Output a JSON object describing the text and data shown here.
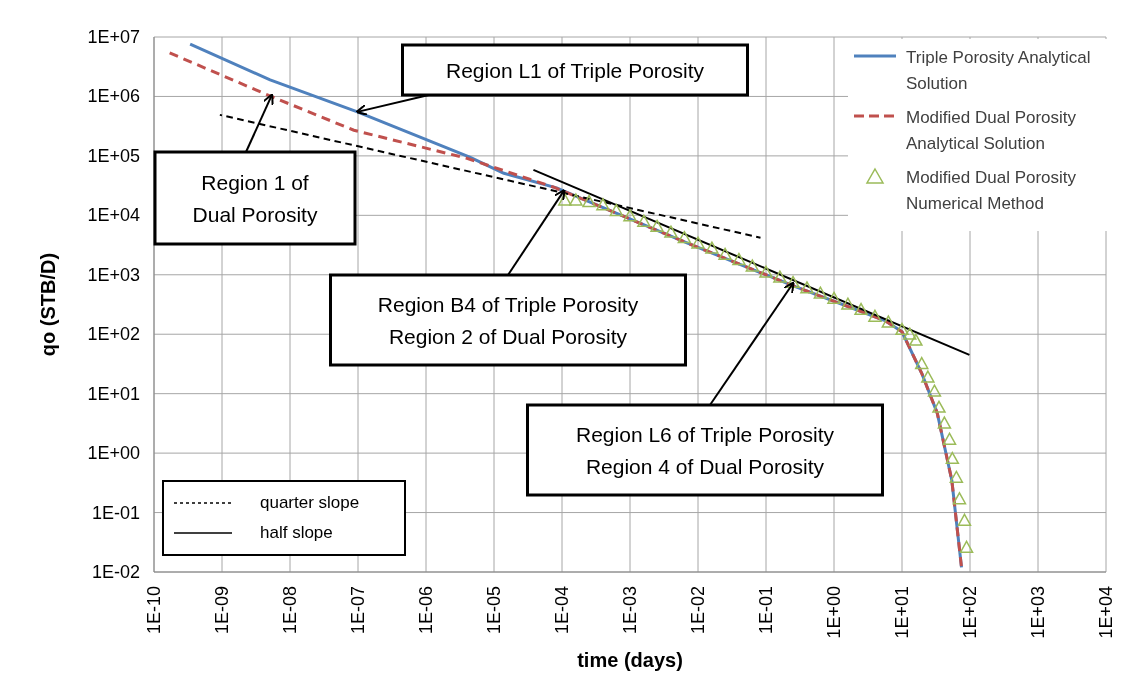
{
  "chart_data": {
    "type": "line",
    "xlabel": "time (days)",
    "ylabel": "qo (STB/D)",
    "log": "xy",
    "grid": true,
    "legend": "top right",
    "xlim": [
      1e-10,
      10000
    ],
    "ylim": [
      0.01,
      10000000
    ],
    "xticks": [
      {
        "value": 1e-10,
        "label": "1E-10"
      },
      {
        "value": 1e-09,
        "label": "1E-09"
      },
      {
        "value": 1e-08,
        "label": "1E-08"
      },
      {
        "value": 1e-07,
        "label": "1E-07"
      },
      {
        "value": 1e-06,
        "label": "1E-06"
      },
      {
        "value": 1e-05,
        "label": "1E-05"
      },
      {
        "value": 0.0001,
        "label": "1E-04"
      },
      {
        "value": 0.001,
        "label": "1E-03"
      },
      {
        "value": 0.01,
        "label": "1E-02"
      },
      {
        "value": 0.1,
        "label": "1E-01"
      },
      {
        "value": 1,
        "label": "1E+00"
      },
      {
        "value": 10,
        "label": "1E+01"
      },
      {
        "value": 100,
        "label": "1E+02"
      },
      {
        "value": 1000,
        "label": "1E+03"
      },
      {
        "value": 10000,
        "label": "1E+04"
      }
    ],
    "yticks": [
      {
        "value": 0.01,
        "label": "1E-02"
      },
      {
        "value": 0.1,
        "label": "1E-01"
      },
      {
        "value": 1,
        "label": "1E+00"
      },
      {
        "value": 10,
        "label": "1E+01"
      },
      {
        "value": 100,
        "label": "1E+02"
      },
      {
        "value": 1000,
        "label": "1E+03"
      },
      {
        "value": 10000,
        "label": "1E+04"
      },
      {
        "value": 100000,
        "label": "1E+05"
      },
      {
        "value": 1000000,
        "label": "1E+06"
      },
      {
        "value": 10000000,
        "label": "1E+07"
      }
    ],
    "series": [
      {
        "name": "Triple Porosity Analytical Solution",
        "color": "#4f81bd",
        "line_style": "solid",
        "x": [
          3.4e-10,
          5.1e-09,
          9.8e-08,
          4.4e-06,
          1.4e-05,
          8.3e-05,
          0.00022,
          0.0066,
          0.27,
          5.6,
          10,
          19.5,
          33,
          54,
          75
        ],
        "values": [
          7600000,
          1900000,
          550000,
          95000,
          51000,
          29000,
          18000,
          3500,
          630,
          170,
          110,
          22,
          4.7,
          0.35,
          0.012
        ]
      },
      {
        "name": "Modified Dual Porosity Analytical Solution",
        "color": "#c0504d",
        "line_style": "dashed",
        "x": [
          1.7e-10,
          5.5e-09,
          8.7e-08,
          4e-06,
          7.4e-05,
          0.00022,
          0.0066,
          0.27,
          5.6,
          10,
          19.5,
          33,
          54,
          75
        ],
        "values": [
          5400000,
          980000,
          270000,
          91000,
          30000,
          18000,
          3500,
          630,
          170,
          110,
          22,
          4.7,
          0.35,
          0.012
        ]
      },
      {
        "name": "Modified Dual Porosity Numerical Method",
        "type": "scatter",
        "marker": "triangle",
        "color": "#9bbb59",
        "x": [
          0.00011,
          0.00016,
          0.00025,
          0.0004,
          0.00063,
          0.001,
          0.0016,
          0.0025,
          0.004,
          0.0063,
          0.01,
          0.016,
          0.025,
          0.04,
          0.063,
          0.1,
          0.16,
          0.25,
          0.4,
          0.63,
          1,
          1.6,
          2.5,
          4,
          6.3,
          10,
          13,
          16,
          19.5,
          24,
          30,
          35,
          42,
          50,
          55,
          63,
          70,
          83,
          89
        ],
        "values": [
          18000,
          18000,
          17000,
          15000,
          12000,
          9800,
          7900,
          6500,
          5200,
          4200,
          3400,
          2800,
          2200,
          1800,
          1400,
          1100,
          910,
          740,
          600,
          490,
          400,
          320,
          260,
          200,
          160,
          120,
          100,
          79,
          32,
          19,
          11,
          5.9,
          3.2,
          1.7,
          0.81,
          0.39,
          0.17,
          0.074,
          0.026
        ]
      },
      {
        "name": "quarter slope",
        "color": "#000000",
        "line_style": "dashed",
        "x": [
          9.3e-10,
          0.083
        ],
        "values": [
          490000,
          4200
        ]
      },
      {
        "name": "half slope",
        "color": "#000000",
        "line_style": "solid",
        "x": [
          3.8e-05,
          98
        ],
        "values": [
          58000,
          45
        ]
      }
    ],
    "annotations": [
      {
        "text": "Region L1 of Triple Porosity",
        "x": 9.8e-08,
        "y": 550000
      },
      {
        "text": "Region 1 of\nDual Porosity",
        "x": 5.4e-09,
        "y": 1050000
      },
      {
        "text": "Region B4 of Triple Porosity\nRegion 2 of Dual Porosity",
        "x": 0.000107,
        "y": 26000
      },
      {
        "text": "Region L6 of Triple Porosity\nRegion 4 of Dual Porosity",
        "x": 0.25,
        "y": 720
      }
    ]
  }
}
